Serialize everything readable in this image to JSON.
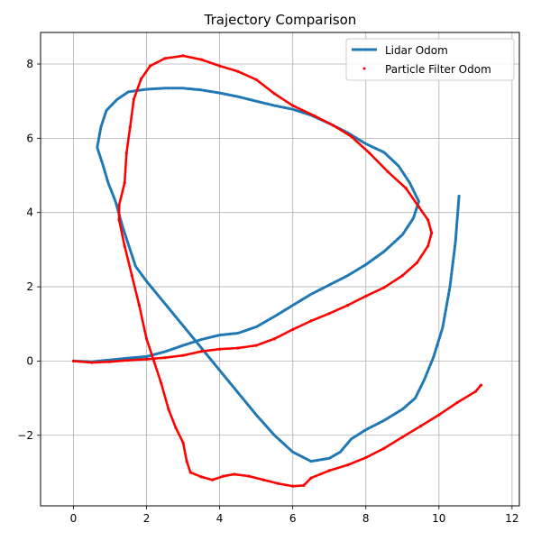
{
  "chart_data": {
    "type": "scatter",
    "title": "Trajectory Comparison",
    "xlabel": "",
    "ylabel": "",
    "xlim": [
      -0.9,
      12.2
    ],
    "ylim": [
      -3.9,
      8.85
    ],
    "xticks": [
      0,
      2,
      4,
      6,
      8,
      10,
      12
    ],
    "yticks": [
      -2,
      0,
      2,
      4,
      6,
      8
    ],
    "grid": true,
    "legend_position": "top-right",
    "series": [
      {
        "name": "Lidar Odom",
        "style": "line",
        "color": "#1f77b4",
        "points": [
          [
            0.0,
            0.0
          ],
          [
            0.5,
            -0.02
          ],
          [
            1.0,
            0.03
          ],
          [
            1.5,
            0.08
          ],
          [
            2.0,
            0.12
          ],
          [
            2.5,
            0.25
          ],
          [
            3.0,
            0.42
          ],
          [
            3.5,
            0.58
          ],
          [
            4.0,
            0.7
          ],
          [
            4.5,
            0.75
          ],
          [
            5.0,
            0.92
          ],
          [
            5.5,
            1.2
          ],
          [
            6.0,
            1.5
          ],
          [
            6.5,
            1.8
          ],
          [
            7.0,
            2.05
          ],
          [
            7.5,
            2.3
          ],
          [
            8.0,
            2.6
          ],
          [
            8.5,
            2.95
          ],
          [
            9.0,
            3.4
          ],
          [
            9.3,
            3.85
          ],
          [
            9.45,
            4.3
          ],
          [
            9.2,
            4.8
          ],
          [
            8.9,
            5.25
          ],
          [
            8.5,
            5.62
          ],
          [
            8.0,
            5.85
          ],
          [
            7.5,
            6.15
          ],
          [
            7.0,
            6.4
          ],
          [
            6.5,
            6.62
          ],
          [
            6.0,
            6.78
          ],
          [
            5.5,
            6.88
          ],
          [
            5.0,
            7.0
          ],
          [
            4.5,
            7.12
          ],
          [
            4.0,
            7.22
          ],
          [
            3.5,
            7.3
          ],
          [
            3.0,
            7.35
          ],
          [
            2.5,
            7.35
          ],
          [
            2.0,
            7.32
          ],
          [
            1.5,
            7.25
          ],
          [
            1.2,
            7.05
          ],
          [
            0.9,
            6.75
          ],
          [
            0.75,
            6.3
          ],
          [
            0.65,
            5.75
          ],
          [
            0.8,
            5.3
          ],
          [
            0.95,
            4.8
          ],
          [
            1.15,
            4.3
          ],
          [
            1.35,
            3.6
          ],
          [
            1.55,
            3.0
          ],
          [
            1.7,
            2.55
          ],
          [
            2.0,
            2.15
          ],
          [
            2.5,
            1.55
          ],
          [
            3.0,
            0.95
          ],
          [
            3.5,
            0.35
          ],
          [
            4.0,
            -0.25
          ],
          [
            4.5,
            -0.85
          ],
          [
            5.0,
            -1.45
          ],
          [
            5.5,
            -2.0
          ],
          [
            6.0,
            -2.45
          ],
          [
            6.5,
            -2.7
          ],
          [
            7.0,
            -2.62
          ],
          [
            7.3,
            -2.45
          ],
          [
            7.6,
            -2.1
          ],
          [
            8.0,
            -1.85
          ],
          [
            8.5,
            -1.6
          ],
          [
            9.0,
            -1.3
          ],
          [
            9.35,
            -1.0
          ],
          [
            9.6,
            -0.5
          ],
          [
            9.85,
            0.1
          ],
          [
            10.1,
            0.9
          ],
          [
            10.3,
            2.0
          ],
          [
            10.45,
            3.2
          ],
          [
            10.55,
            4.45
          ]
        ]
      },
      {
        "name": "Particle Filter Odom",
        "style": "dots",
        "color": "#ff0000",
        "points": [
          [
            0.0,
            0.0
          ],
          [
            0.5,
            -0.04
          ],
          [
            1.0,
            -0.02
          ],
          [
            1.5,
            0.02
          ],
          [
            2.0,
            0.05
          ],
          [
            2.5,
            0.09
          ],
          [
            3.0,
            0.15
          ],
          [
            3.5,
            0.26
          ],
          [
            4.0,
            0.32
          ],
          [
            4.5,
            0.35
          ],
          [
            5.0,
            0.42
          ],
          [
            5.5,
            0.6
          ],
          [
            6.0,
            0.85
          ],
          [
            6.5,
            1.08
          ],
          [
            7.0,
            1.28
          ],
          [
            7.5,
            1.5
          ],
          [
            8.0,
            1.75
          ],
          [
            8.5,
            1.98
          ],
          [
            9.0,
            2.3
          ],
          [
            9.4,
            2.65
          ],
          [
            9.7,
            3.1
          ],
          [
            9.8,
            3.45
          ],
          [
            9.7,
            3.8
          ],
          [
            9.45,
            4.15
          ],
          [
            9.1,
            4.65
          ],
          [
            8.6,
            5.1
          ],
          [
            8.1,
            5.6
          ],
          [
            7.6,
            6.05
          ],
          [
            7.1,
            6.35
          ],
          [
            6.6,
            6.6
          ],
          [
            6.0,
            6.88
          ],
          [
            5.5,
            7.2
          ],
          [
            5.0,
            7.58
          ],
          [
            4.5,
            7.8
          ],
          [
            4.0,
            7.95
          ],
          [
            3.5,
            8.12
          ],
          [
            3.0,
            8.22
          ],
          [
            2.5,
            8.15
          ],
          [
            2.1,
            7.95
          ],
          [
            1.85,
            7.6
          ],
          [
            1.65,
            7.05
          ],
          [
            1.55,
            6.3
          ],
          [
            1.45,
            5.6
          ],
          [
            1.4,
            4.8
          ],
          [
            1.25,
            4.2
          ],
          [
            1.25,
            3.8
          ],
          [
            1.4,
            3.1
          ],
          [
            1.6,
            2.3
          ],
          [
            1.8,
            1.5
          ],
          [
            2.0,
            0.6
          ],
          [
            2.2,
            0.0
          ],
          [
            2.4,
            -0.6
          ],
          [
            2.6,
            -1.3
          ],
          [
            2.8,
            -1.8
          ],
          [
            3.0,
            -2.2
          ],
          [
            3.1,
            -2.7
          ],
          [
            3.2,
            -3.0
          ],
          [
            3.5,
            -3.12
          ],
          [
            3.8,
            -3.2
          ],
          [
            4.1,
            -3.1
          ],
          [
            4.4,
            -3.05
          ],
          [
            4.8,
            -3.1
          ],
          [
            5.2,
            -3.2
          ],
          [
            5.6,
            -3.3
          ],
          [
            6.0,
            -3.37
          ],
          [
            6.3,
            -3.35
          ],
          [
            6.5,
            -3.15
          ],
          [
            7.0,
            -2.95
          ],
          [
            7.5,
            -2.8
          ],
          [
            8.0,
            -2.6
          ],
          [
            8.5,
            -2.35
          ],
          [
            9.0,
            -2.05
          ],
          [
            9.5,
            -1.75
          ],
          [
            10.0,
            -1.45
          ],
          [
            10.5,
            -1.12
          ],
          [
            11.0,
            -0.82
          ],
          [
            11.15,
            -0.65
          ]
        ]
      }
    ]
  }
}
